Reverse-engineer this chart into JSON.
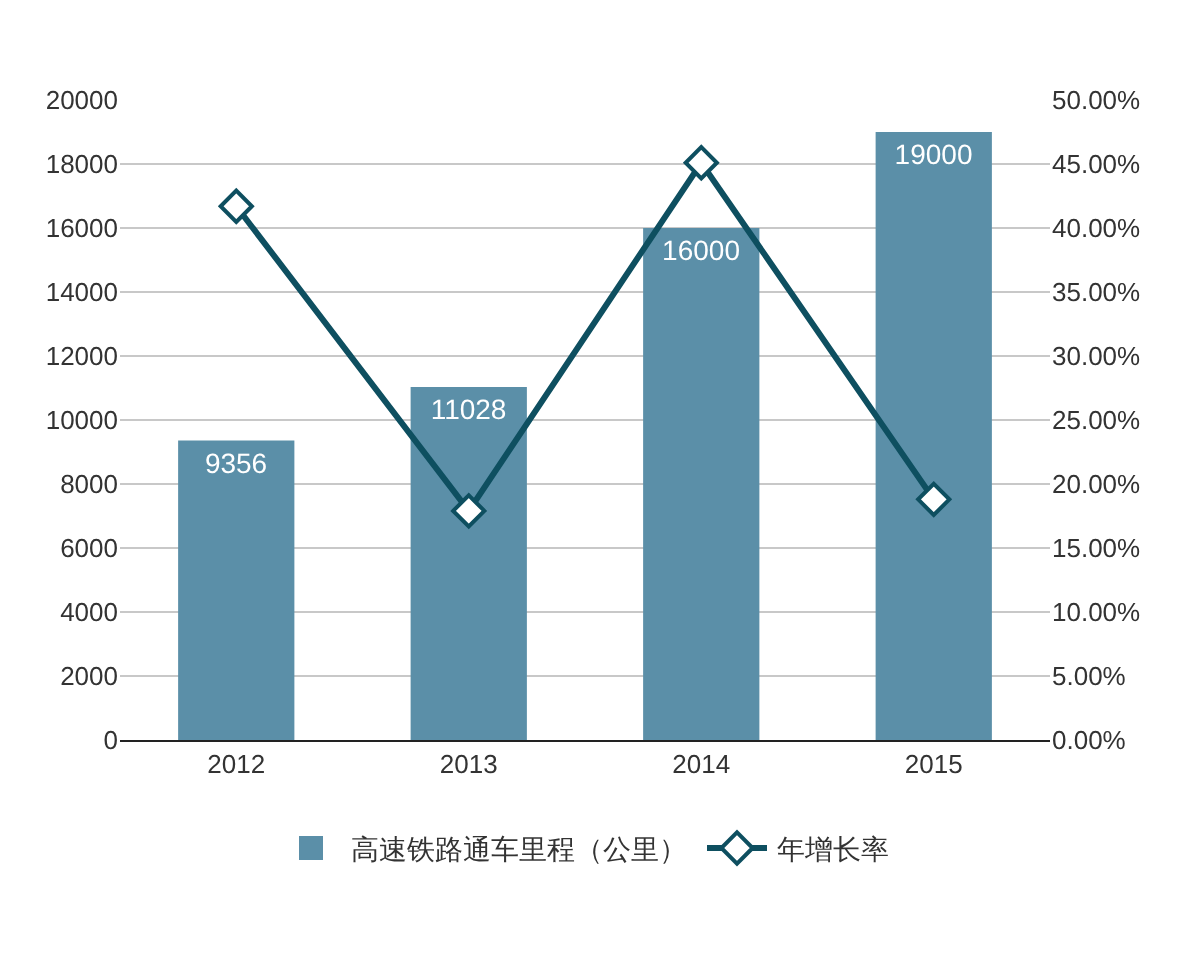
{
  "chart_data": {
    "type": "bar",
    "categories": [
      "2012",
      "2013",
      "2014",
      "2015"
    ],
    "series": [
      {
        "name": "高速铁路通车里程（公里）",
        "color": "#5b8fa8",
        "values": [
          9356,
          11028,
          16000,
          19000
        ],
        "value_labels": [
          "9356",
          "11028",
          "16000",
          "19000"
        ]
      },
      {
        "name": "年增长率",
        "type": "line",
        "axis": "y2",
        "color": "#0e4f60",
        "values": [
          41.7,
          17.9,
          45.1,
          18.8
        ],
        "marker": "diamond"
      }
    ],
    "ylim": [
      0,
      20000
    ],
    "yticks": [
      0,
      2000,
      4000,
      6000,
      8000,
      10000,
      12000,
      14000,
      16000,
      18000,
      20000
    ],
    "y2lim": [
      0,
      50
    ],
    "y2ticks": [
      {
        "value": 0,
        "label": "0.00%"
      },
      {
        "value": 5,
        "label": "5.00%"
      },
      {
        "value": 10,
        "label": "10.00%"
      },
      {
        "value": 15,
        "label": "15.00%"
      },
      {
        "value": 20,
        "label": "20.00%"
      },
      {
        "value": 25,
        "label": "25.00%"
      },
      {
        "value": 30,
        "label": "30.00%"
      },
      {
        "value": 35,
        "label": "35.00%"
      },
      {
        "value": 40,
        "label": "40.00%"
      },
      {
        "value": 45,
        "label": "45.00%"
      },
      {
        "value": 50,
        "label": "50.00%"
      }
    ],
    "grid": "y",
    "legend": "bottom"
  }
}
